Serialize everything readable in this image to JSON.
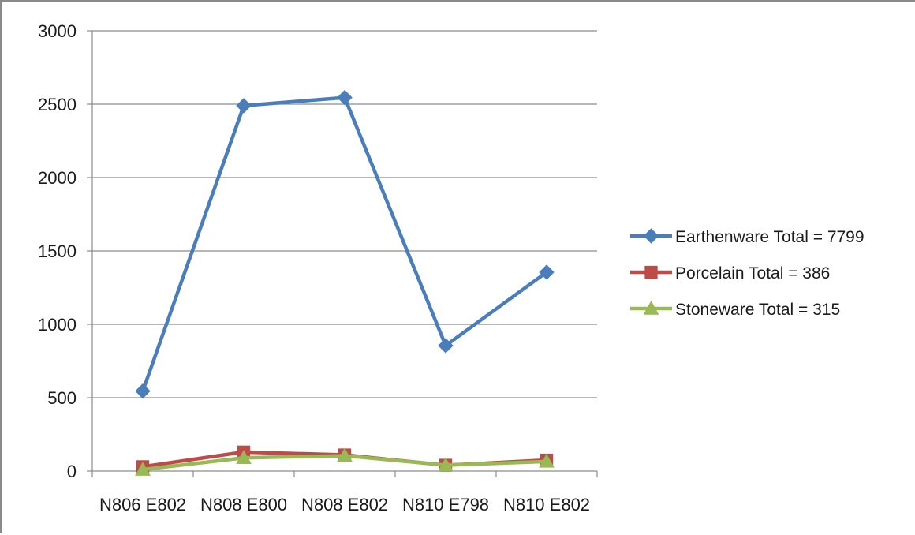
{
  "chart_data": {
    "type": "line",
    "title": "",
    "xlabel": "",
    "ylabel": "",
    "categories": [
      "N806 E802",
      "N808 E800",
      "N808 E802",
      "N810 E798",
      "N810 E802"
    ],
    "ylim": [
      0,
      3000
    ],
    "yticks": [
      0,
      500,
      1000,
      1500,
      2000,
      2500,
      3000
    ],
    "grid": true,
    "legend_position": "right",
    "series": [
      {
        "name": "Earthenware Total = 7799",
        "values": [
          545,
          2490,
          2545,
          855,
          1355
        ],
        "color": "#4a7ebb",
        "marker": "diamond"
      },
      {
        "name": "Porcelain Total = 386",
        "values": [
          30,
          130,
          110,
          40,
          75
        ],
        "color": "#be4b48",
        "marker": "square"
      },
      {
        "name": "Stoneware Total = 315",
        "values": [
          10,
          90,
          105,
          40,
          65
        ],
        "color": "#98b954",
        "marker": "triangle"
      }
    ]
  }
}
